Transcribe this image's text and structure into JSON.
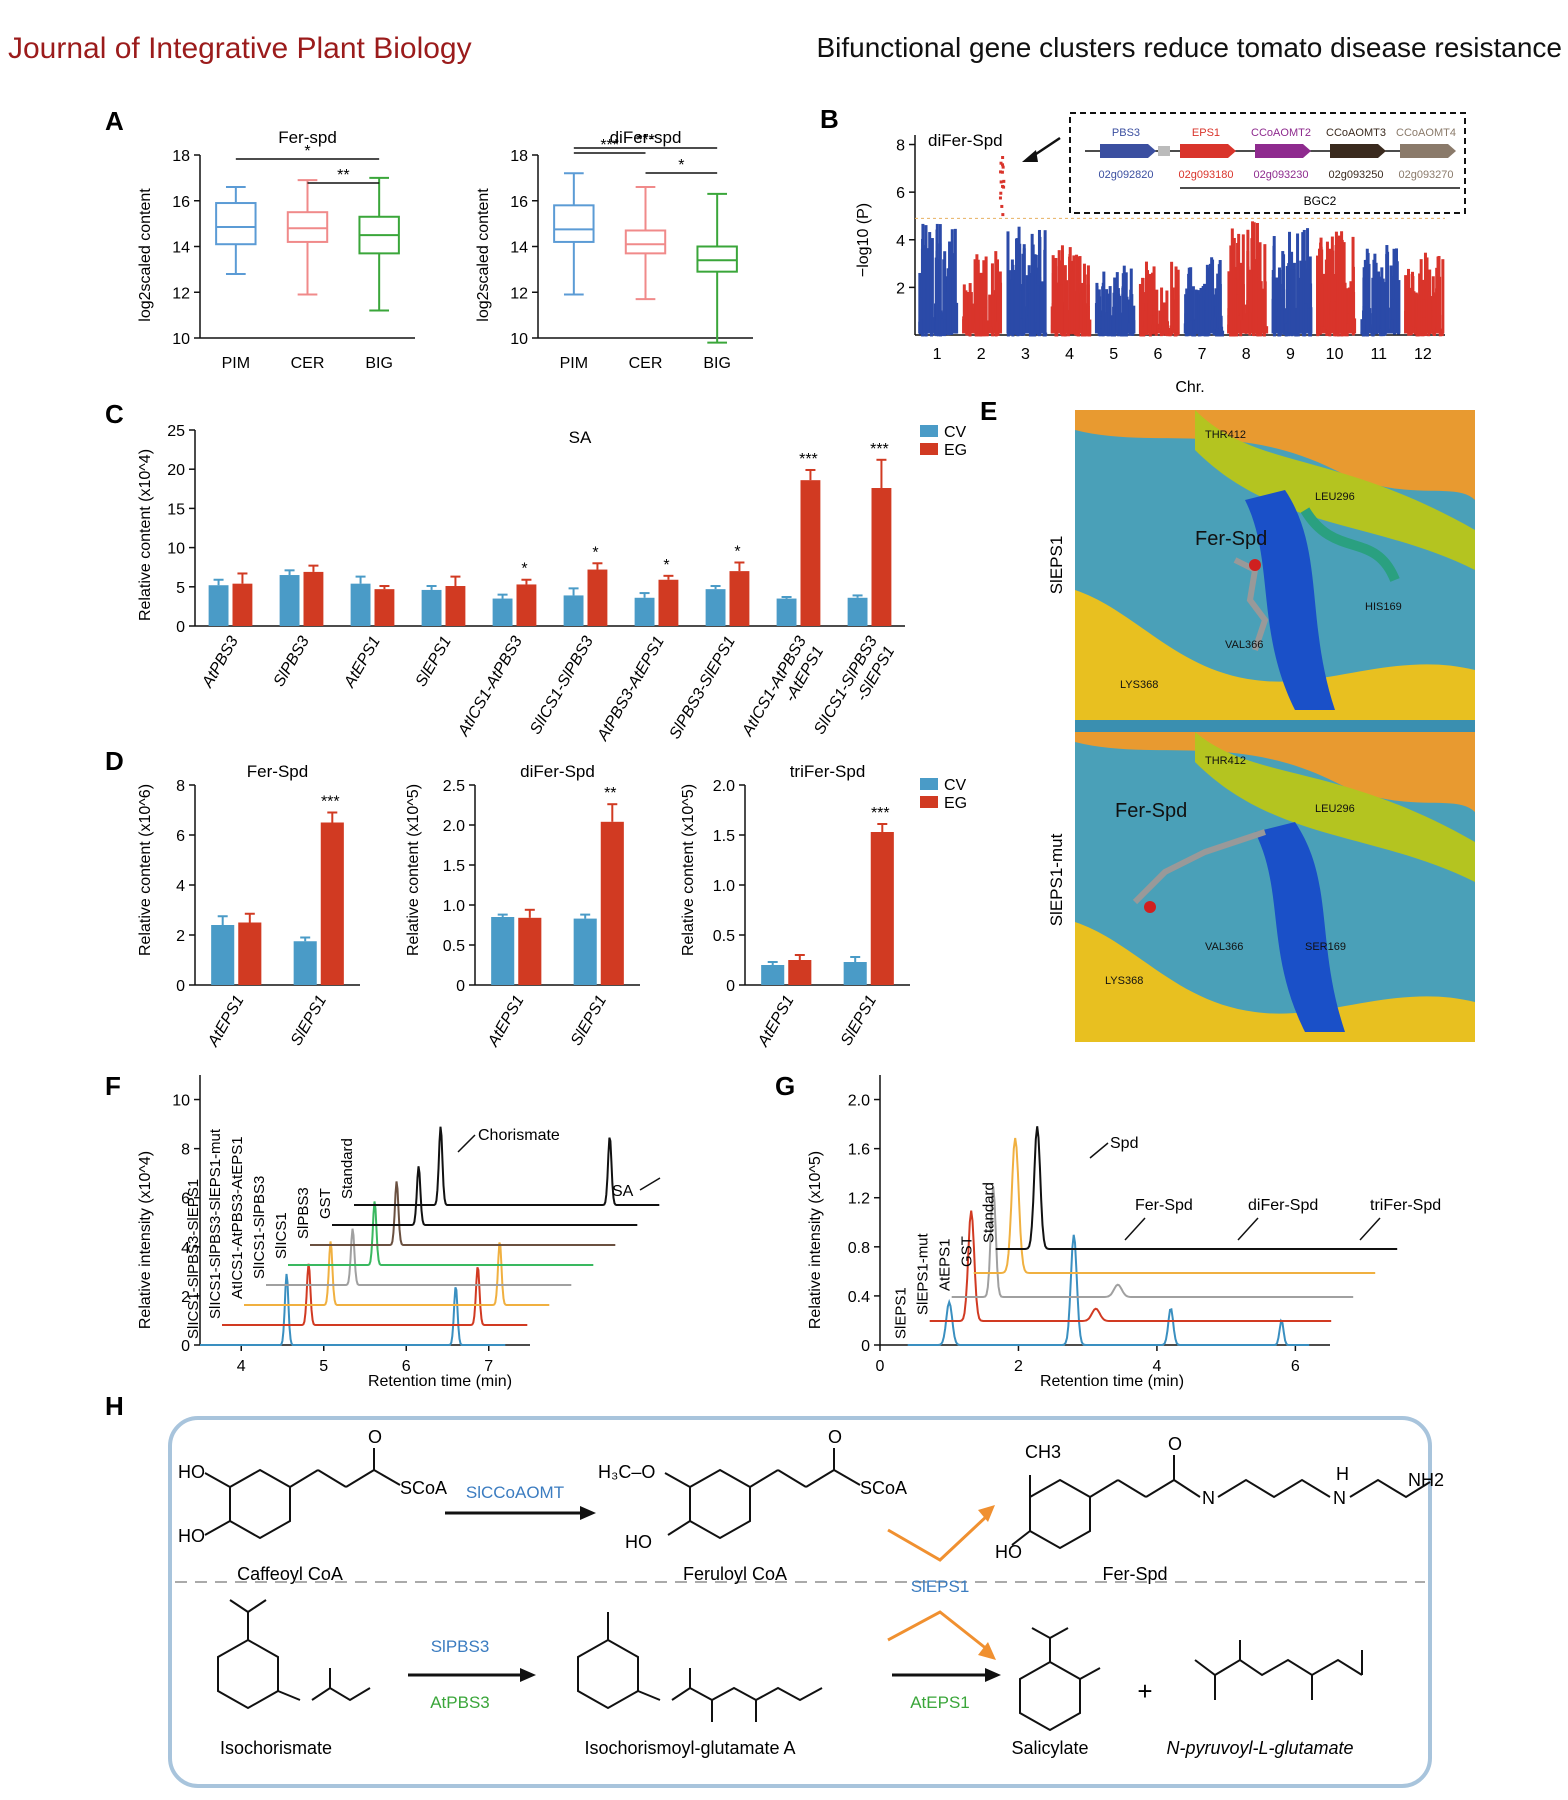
{
  "header": {
    "journal": "Journal of Integrative Plant Biology",
    "title": "Bifunctional gene clusters reduce tomato disease resistance"
  },
  "panel_labels": [
    "A",
    "B",
    "C",
    "D",
    "E",
    "F",
    "G",
    "H"
  ],
  "panelA": {
    "ylabel": "log2scaled content",
    "fer": {
      "title": "Fer-spd",
      "ylim": [
        10,
        18
      ],
      "yticks": [
        "10",
        "12",
        "14",
        "16",
        "18"
      ],
      "groups": [
        "PIM",
        "CER",
        "BIG"
      ],
      "colors": [
        "#5b9bd5",
        "#f08a8a",
        "#3aa63a"
      ],
      "boxes": [
        {
          "min": 12.8,
          "q1": 14.1,
          "med": 14.85,
          "q3": 15.9,
          "max": 16.6
        },
        {
          "min": 11.9,
          "q1": 14.2,
          "med": 14.8,
          "q3": 15.5,
          "max": 16.9
        },
        {
          "min": 11.2,
          "q1": 13.7,
          "med": 14.5,
          "q3": 15.3,
          "max": 17.0
        }
      ],
      "sig": [
        {
          "from": 0,
          "to": 2,
          "label": "*"
        },
        {
          "from": 1,
          "to": 2,
          "label": "**"
        }
      ]
    },
    "difer": {
      "title": "diFer-spd",
      "ylim": [
        10,
        18
      ],
      "yticks": [
        "10",
        "12",
        "14",
        "16",
        "18"
      ],
      "groups": [
        "PIM",
        "CER",
        "BIG"
      ],
      "colors": [
        "#5b9bd5",
        "#f08a8a",
        "#3aa63a"
      ],
      "boxes": [
        {
          "min": 11.9,
          "q1": 14.2,
          "med": 14.75,
          "q3": 15.8,
          "max": 17.2
        },
        {
          "min": 11.7,
          "q1": 13.7,
          "med": 14.1,
          "q3": 14.7,
          "max": 16.6
        },
        {
          "min": 9.8,
          "q1": 12.9,
          "med": 13.4,
          "q3": 14.0,
          "max": 16.3
        }
      ],
      "sig": [
        {
          "from": 0,
          "to": 1,
          "label": "***"
        },
        {
          "from": 0,
          "to": 2,
          "label": "***"
        },
        {
          "from": 1,
          "to": 2,
          "label": "*"
        }
      ]
    }
  },
  "panelB": {
    "title": "diFer-Spd",
    "ylabel": "−log10 (P)",
    "xlabel": "Chr.",
    "yticks": [
      "2",
      "4",
      "6",
      "8"
    ],
    "chromosomes": [
      "1",
      "2",
      "3",
      "4",
      "5",
      "6",
      "7",
      "8",
      "9",
      "10",
      "11",
      "12"
    ],
    "gene_cluster": {
      "genes": [
        {
          "name": "PBS3",
          "id": "02g092820",
          "color": "#3b4fa0"
        },
        {
          "name": "EPS1",
          "id": "02g093180",
          "color": "#d9342b"
        },
        {
          "name": "CCoAOMT2",
          "id": "02g093230",
          "color": "#8e2a8e"
        },
        {
          "name": "CCoAOMT3",
          "id": "02g093250",
          "color": "#3a2a1e"
        },
        {
          "name": "CCoAOMT4",
          "id": "02g093270",
          "color": "#8a7a6a"
        }
      ],
      "label": "BGC2"
    },
    "colors": {
      "odd": "#2b4aa8",
      "even": "#d9342b"
    }
  },
  "chart_data": [
    {
      "type": "bar",
      "title": "SA",
      "ylabel": "Relative content (x10^4)",
      "ylim": [
        0,
        25
      ],
      "yticks": [
        "0",
        "5",
        "10",
        "15",
        "20",
        "25"
      ],
      "categories": [
        "AtPBS3",
        "SlPBS3",
        "AtEPS1",
        "SlEPS1",
        "AtICS1-AtPBS3",
        "SlICS1-SlPBS3",
        "AtPBS3-AtEPS1",
        "SlPBS3-SlEPS1",
        "AtICS1-AtPBS3-AtEPS1",
        "SlICS1-SlPBS3-SlEPS1"
      ],
      "category_lines": [
        [
          "AtPBS3"
        ],
        [
          "SlPBS3"
        ],
        [
          "AtEPS1"
        ],
        [
          "SlEPS1"
        ],
        [
          "AtICS1-AtPBS3"
        ],
        [
          "SlICS1-SlPBS3"
        ],
        [
          "AtPBS3-AtEPS1"
        ],
        [
          "SlPBS3-SlEPS1"
        ],
        [
          "AtICS1-AtPBS3",
          "-AtEPS1"
        ],
        [
          "SlICS1-SlPBS3",
          "-SlEPS1"
        ]
      ],
      "series": [
        {
          "name": "CV",
          "color": "#4a9bc7",
          "values": [
            5.2,
            6.5,
            5.4,
            4.6,
            3.5,
            3.9,
            3.6,
            4.7,
            3.5,
            3.6
          ],
          "err": [
            0.7,
            0.6,
            0.9,
            0.5,
            0.5,
            0.9,
            0.6,
            0.4,
            0.2,
            0.3
          ]
        },
        {
          "name": "EG",
          "color": "#d13a22",
          "values": [
            5.4,
            6.9,
            4.7,
            5.1,
            5.3,
            7.2,
            5.9,
            7.0,
            18.6,
            17.6
          ],
          "err": [
            1.3,
            0.8,
            0.4,
            1.2,
            0.6,
            0.8,
            0.5,
            1.1,
            1.3,
            3.6
          ]
        }
      ],
      "sig": [
        "",
        "",
        "",
        "",
        "*",
        "*",
        "*",
        "*",
        "***",
        "***"
      ]
    },
    {
      "type": "bar",
      "title": "Fer-Spd",
      "ylabel": "Relative content (x10^6)",
      "ylim": [
        0,
        8
      ],
      "yticks": [
        "0",
        "2",
        "4",
        "6",
        "8"
      ],
      "categories": [
        "AtEPS1",
        "SlEPS1"
      ],
      "series": [
        {
          "name": "CV",
          "color": "#4a9bc7",
          "values": [
            2.4,
            1.75
          ],
          "err": [
            0.35,
            0.15
          ]
        },
        {
          "name": "EG",
          "color": "#d13a22",
          "values": [
            2.5,
            6.5
          ],
          "err": [
            0.35,
            0.4
          ]
        }
      ],
      "sig": [
        "",
        "***"
      ]
    },
    {
      "type": "bar",
      "title": "diFer-Spd",
      "ylabel": "Relative content (x10^5)",
      "ylim": [
        0,
        2.5
      ],
      "yticks": [
        "0",
        "0.5",
        "1.0",
        "1.5",
        "2.0",
        "2.5"
      ],
      "categories": [
        "AtEPS1",
        "SlEPS1"
      ],
      "series": [
        {
          "name": "CV",
          "color": "#4a9bc7",
          "values": [
            0.85,
            0.83
          ],
          "err": [
            0.03,
            0.05
          ]
        },
        {
          "name": "EG",
          "color": "#d13a22",
          "values": [
            0.84,
            2.04
          ],
          "err": [
            0.1,
            0.22
          ]
        }
      ],
      "sig": [
        "",
        "**"
      ]
    },
    {
      "type": "bar",
      "title": "triFer-Spd",
      "ylabel": "Relative content (x10^5)",
      "ylim": [
        0,
        2.0
      ],
      "yticks": [
        "0",
        "0.5",
        "1.0",
        "1.5",
        "2.0"
      ],
      "categories": [
        "AtEPS1",
        "SlEPS1"
      ],
      "series": [
        {
          "name": "CV",
          "color": "#4a9bc7",
          "values": [
            0.2,
            0.23
          ],
          "err": [
            0.03,
            0.05
          ]
        },
        {
          "name": "EG",
          "color": "#d13a22",
          "values": [
            0.25,
            1.53
          ],
          "err": [
            0.05,
            0.08
          ]
        }
      ],
      "sig": [
        "",
        "***"
      ]
    }
  ],
  "legend": {
    "cv": "CV",
    "eg": "EG",
    "cv_color": "#4a9bc7",
    "eg_color": "#d13a22"
  },
  "panelE": {
    "top_label": "SlEPS1",
    "bottom_label": "SlEPS1-mut",
    "ligand": "Fer-Spd",
    "top_residues": [
      "THR412",
      "LEU296",
      "HIS169",
      "VAL366",
      "LYS368"
    ],
    "bottom_residues": [
      "THR412",
      "LEU296",
      "VAL366",
      "SER169",
      "LYS368"
    ]
  },
  "panelF": {
    "ylabel": "Relative intensity (x10^4)",
    "xlabel": "Retention time (min)",
    "yticks": [
      "0",
      "2",
      "4",
      "6",
      "8",
      "10"
    ],
    "xticks": [
      "4",
      "5",
      "6",
      "7"
    ],
    "traces": [
      {
        "label": "SlICS1-SlPBS3-SlEPS1",
        "color": "#3a8fc0"
      },
      {
        "label": "SlICS1-SlPBS3-SlEPS1-mut",
        "color": "#d13a22"
      },
      {
        "label": "AtICS1-AtPBS3-AtEPS1",
        "color": "#f0b040"
      },
      {
        "label": "SlICS1-SlPBS3",
        "color": "#a0a0a0"
      },
      {
        "label": "SlICS1",
        "color": "#3ab860"
      },
      {
        "label": "SlPBS3",
        "color": "#6a5040"
      },
      {
        "label": "GST",
        "color": "#111111"
      },
      {
        "label": "Standard",
        "color": "#111111"
      }
    ],
    "peaks": {
      "chorismate": "Chorismate",
      "sa": "SA"
    }
  },
  "panelG": {
    "ylabel": "Relative intensity (x10^5)",
    "xlabel": "Retention time (min)",
    "yticks": [
      "0",
      "0.4",
      "0.8",
      "1.2",
      "1.6",
      "2.0"
    ],
    "xticks": [
      "0",
      "2",
      "4",
      "6"
    ],
    "traces": [
      {
        "label": "SlEPS1",
        "color": "#3a8fc0"
      },
      {
        "label": "SlEPS1-mut",
        "color": "#d13a22"
      },
      {
        "label": "AtEPS1",
        "color": "#a0a0a0"
      },
      {
        "label": "GST",
        "color": "#f0b040"
      },
      {
        "label": "Standard",
        "color": "#111111"
      }
    ],
    "peaks": {
      "spd": "Spd",
      "fer": "Fer-Spd",
      "difer": "diFer-Spd",
      "trifer": "triFer-Spd"
    }
  },
  "panelH": {
    "compounds": {
      "caffeoyl": "Caffeoyl CoA",
      "feruloyl": "Feruloyl CoA",
      "ferspd": "Fer-Spd",
      "isochorismate": "Isochorismate",
      "isoglu": "Isochorismoyl-glutamate A",
      "salicylate": "Salicylate",
      "pyruvoyl": "N-pyruvoyl-L-glutamate"
    },
    "enzymes": {
      "ccoaomt": "SlCCoAOMT",
      "eps1": "SlEPS1",
      "slpbs3": "SlPBS3",
      "atpbs3": "AtPBS3",
      "ateps1": "AtEPS1"
    },
    "plus": "+"
  }
}
